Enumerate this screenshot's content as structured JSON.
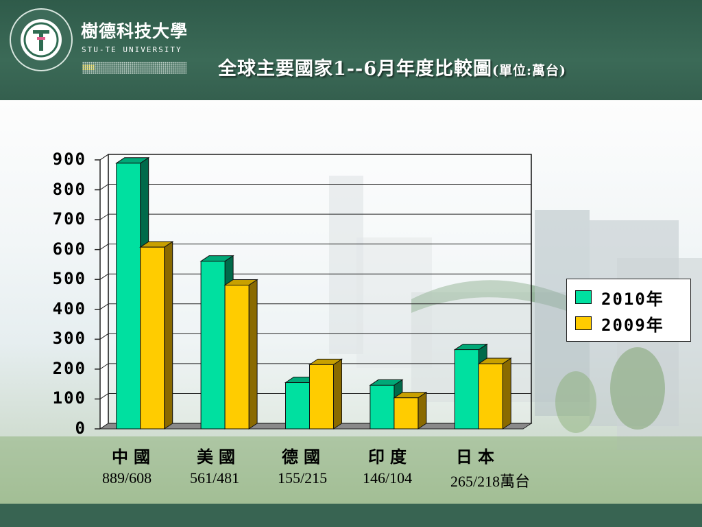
{
  "header": {
    "school_name": "樹德科技大學",
    "school_name_en": "STU-TE UNIVERSITY",
    "logo_ring_text": "樹德科技大學 SHUTEUNIVERSITY",
    "title_main": "全球主要國家1--6月年度比較圖",
    "title_unit": "(單位:萬台)"
  },
  "labels": {
    "values_unit": "萬台",
    "value_texts": [
      "889/608",
      "561/481",
      "155/215",
      "146/104",
      "265/218"
    ]
  },
  "colors": {
    "series_2010": "#00e0a0",
    "series_2009": "#ffcc00",
    "header_bg": "#3b6a57"
  },
  "chart_data": {
    "type": "bar",
    "categories": [
      "中國",
      "美國",
      "德國",
      "印度",
      "日本"
    ],
    "series": [
      {
        "name": "2010年",
        "values": [
          889,
          561,
          155,
          146,
          265
        ]
      },
      {
        "name": "2009年",
        "values": [
          608,
          481,
          215,
          104,
          218
        ]
      }
    ],
    "yticks": [
      "0",
      "100",
      "200",
      "300",
      "400",
      "500",
      "600",
      "700",
      "800",
      "900"
    ],
    "ylim": [
      0,
      900
    ],
    "grid": true,
    "legend_position": "right"
  }
}
